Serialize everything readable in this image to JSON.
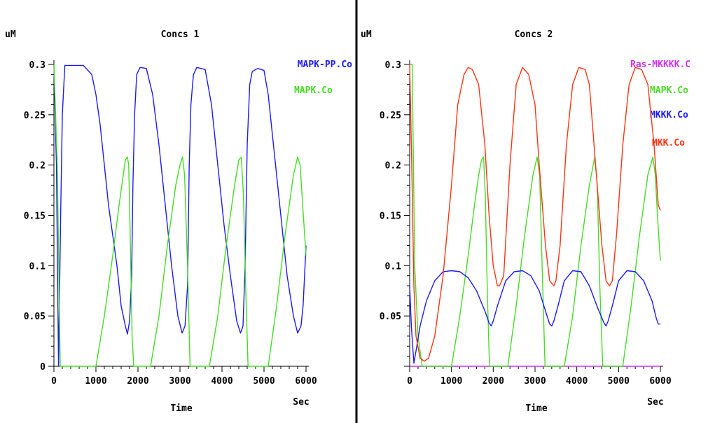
{
  "chart_data": [
    {
      "type": "line",
      "title": "Concs 1",
      "ylabel": "uM",
      "xlabel": "Time",
      "xunit": "Sec",
      "xlim": [
        0,
        6000
      ],
      "ylim": [
        0,
        0.3
      ],
      "xticks": [
        "0",
        "1000",
        "2000",
        "3000",
        "4000",
        "5000",
        "6000"
      ],
      "yticks": [
        "0",
        "0.05",
        "0.1",
        "0.15",
        "0.2",
        "0.25",
        "0.3"
      ],
      "legend_placement": "top-right",
      "series": [
        {
          "name": "MAPK-PP.Co",
          "color": "#1a1aff",
          "points": [
            [
              0,
              0.3
            ],
            [
              60,
              0.2
            ],
            [
              110,
              0
            ],
            [
              160,
              0.15
            ],
            [
              200,
              0.25
            ],
            [
              260,
              0.299
            ],
            [
              700,
              0.299
            ],
            [
              900,
              0.29
            ],
            [
              1000,
              0.27
            ],
            [
              1100,
              0.24
            ],
            [
              1200,
              0.2
            ],
            [
              1300,
              0.16
            ],
            [
              1400,
              0.13
            ],
            [
              1500,
              0.1
            ],
            [
              1600,
              0.06
            ],
            [
              1700,
              0.04
            ],
            [
              1750,
              0.032
            ],
            [
              1800,
              0.045
            ],
            [
              1850,
              0.09
            ],
            [
              1880,
              0.18
            ],
            [
              1920,
              0.25
            ],
            [
              1970,
              0.29
            ],
            [
              2050,
              0.297
            ],
            [
              2200,
              0.296
            ],
            [
              2350,
              0.27
            ],
            [
              2500,
              0.22
            ],
            [
              2650,
              0.16
            ],
            [
              2800,
              0.1
            ],
            [
              2950,
              0.05
            ],
            [
              3050,
              0.033
            ],
            [
              3120,
              0.04
            ],
            [
              3180,
              0.08
            ],
            [
              3220,
              0.2
            ],
            [
              3260,
              0.26
            ],
            [
              3320,
              0.29
            ],
            [
              3400,
              0.297
            ],
            [
              3600,
              0.295
            ],
            [
              3750,
              0.26
            ],
            [
              3900,
              0.2
            ],
            [
              4050,
              0.14
            ],
            [
              4200,
              0.09
            ],
            [
              4350,
              0.045
            ],
            [
              4440,
              0.033
            ],
            [
              4500,
              0.04
            ],
            [
              4550,
              0.1
            ],
            [
              4600,
              0.22
            ],
            [
              4660,
              0.28
            ],
            [
              4720,
              0.293
            ],
            [
              4850,
              0.296
            ],
            [
              5000,
              0.294
            ],
            [
              5100,
              0.27
            ],
            [
              5250,
              0.21
            ],
            [
              5400,
              0.15
            ],
            [
              5550,
              0.09
            ],
            [
              5700,
              0.05
            ],
            [
              5800,
              0.033
            ],
            [
              5880,
              0.04
            ],
            [
              5930,
              0.06
            ],
            [
              6000,
              0.12
            ]
          ]
        },
        {
          "name": "MAPK.Co",
          "color": "#44dd22",
          "points": [
            [
              0,
              0.3
            ],
            [
              80,
              0.2
            ],
            [
              150,
              0
            ],
            [
              1000,
              0
            ],
            [
              1200,
              0.05
            ],
            [
              1400,
              0.11
            ],
            [
              1550,
              0.16
            ],
            [
              1650,
              0.19
            ],
            [
              1700,
              0.205
            ],
            [
              1750,
              0.208
            ],
            [
              1780,
              0.2
            ],
            [
              1820,
              0.12
            ],
            [
              1860,
              0.03
            ],
            [
              1900,
              0
            ],
            [
              2300,
              0
            ],
            [
              2500,
              0.05
            ],
            [
              2700,
              0.12
            ],
            [
              2900,
              0.18
            ],
            [
              3000,
              0.2
            ],
            [
              3060,
              0.208
            ],
            [
              3110,
              0.19
            ],
            [
              3180,
              0.1
            ],
            [
              3240,
              0
            ],
            [
              3700,
              0
            ],
            [
              3900,
              0.05
            ],
            [
              4100,
              0.12
            ],
            [
              4300,
              0.18
            ],
            [
              4400,
              0.205
            ],
            [
              4460,
              0.208
            ],
            [
              4510,
              0.17
            ],
            [
              4570,
              0.07
            ],
            [
              4620,
              0
            ],
            [
              5100,
              0
            ],
            [
              5300,
              0.06
            ],
            [
              5500,
              0.13
            ],
            [
              5700,
              0.19
            ],
            [
              5800,
              0.208
            ],
            [
              5860,
              0.2
            ],
            [
              5920,
              0.16
            ],
            [
              6000,
              0.11
            ]
          ]
        }
      ]
    },
    {
      "type": "line",
      "title": "Concs 2",
      "ylabel": "uM",
      "xlabel": "Time",
      "xunit": "Sec",
      "xlim": [
        0,
        6000
      ],
      "ylim": [
        0,
        0.3
      ],
      "xticks": [
        "0",
        "1000",
        "2000",
        "3000",
        "4000",
        "5000",
        "6000"
      ],
      "yticks": [
        "0.05",
        "0.1",
        "0.15",
        "0.2",
        "0.25",
        "0.3"
      ],
      "legend_placement": "top-right",
      "series": [
        {
          "name": "Ras-MKKKK.C",
          "color": "#cc33ee",
          "points": [
            [
              0,
              0
            ],
            [
              6000,
              0
            ]
          ]
        },
        {
          "name": "MAPK.Co",
          "color": "#44dd22",
          "points": [
            [
              0,
              0.3
            ],
            [
              60,
              0.3
            ],
            [
              120,
              0.1
            ],
            [
              200,
              0.03
            ],
            [
              300,
              0
            ],
            [
              1000,
              0
            ],
            [
              1200,
              0.05
            ],
            [
              1400,
              0.11
            ],
            [
              1550,
              0.16
            ],
            [
              1650,
              0.19
            ],
            [
              1720,
              0.205
            ],
            [
              1770,
              0.208
            ],
            [
              1810,
              0.17
            ],
            [
              1860,
              0.07
            ],
            [
              1910,
              0
            ],
            [
              2350,
              0
            ],
            [
              2550,
              0.06
            ],
            [
              2750,
              0.13
            ],
            [
              2950,
              0.19
            ],
            [
              3050,
              0.208
            ],
            [
              3110,
              0.19
            ],
            [
              3170,
              0.1
            ],
            [
              3240,
              0
            ],
            [
              3700,
              0
            ],
            [
              3900,
              0.05
            ],
            [
              4100,
              0.12
            ],
            [
              4300,
              0.18
            ],
            [
              4430,
              0.208
            ],
            [
              4490,
              0.18
            ],
            [
              4550,
              0.08
            ],
            [
              4620,
              0
            ],
            [
              5100,
              0
            ],
            [
              5300,
              0.06
            ],
            [
              5500,
              0.13
            ],
            [
              5700,
              0.19
            ],
            [
              5820,
              0.208
            ],
            [
              5880,
              0.19
            ],
            [
              5930,
              0.15
            ],
            [
              6000,
              0.105
            ]
          ]
        },
        {
          "name": "MKKK.Co",
          "color": "#1a1aff",
          "points": [
            [
              0,
              0.08
            ],
            [
              40,
              0.04
            ],
            [
              100,
              0.003
            ],
            [
              150,
              0.015
            ],
            [
              250,
              0.04
            ],
            [
              400,
              0.065
            ],
            [
              600,
              0.085
            ],
            [
              800,
              0.094
            ],
            [
              1000,
              0.095
            ],
            [
              1200,
              0.094
            ],
            [
              1400,
              0.088
            ],
            [
              1600,
              0.075
            ],
            [
              1800,
              0.055
            ],
            [
              1900,
              0.043
            ],
            [
              1950,
              0.04
            ],
            [
              2000,
              0.045
            ],
            [
              2100,
              0.06
            ],
            [
              2300,
              0.085
            ],
            [
              2500,
              0.094
            ],
            [
              2700,
              0.095
            ],
            [
              2900,
              0.09
            ],
            [
              3100,
              0.075
            ],
            [
              3250,
              0.055
            ],
            [
              3350,
              0.042
            ],
            [
              3400,
              0.04
            ],
            [
              3450,
              0.045
            ],
            [
              3550,
              0.06
            ],
            [
              3700,
              0.085
            ],
            [
              3900,
              0.095
            ],
            [
              4100,
              0.094
            ],
            [
              4300,
              0.08
            ],
            [
              4500,
              0.058
            ],
            [
              4650,
              0.043
            ],
            [
              4700,
              0.04
            ],
            [
              4750,
              0.045
            ],
            [
              4850,
              0.06
            ],
            [
              5000,
              0.085
            ],
            [
              5200,
              0.095
            ],
            [
              5400,
              0.094
            ],
            [
              5600,
              0.085
            ],
            [
              5800,
              0.065
            ],
            [
              5900,
              0.048
            ],
            [
              5950,
              0.042
            ],
            [
              6000,
              0.042
            ]
          ]
        },
        {
          "name": "MKK.Co",
          "color": "#ff3311",
          "points": [
            [
              0,
              0.3
            ],
            [
              50,
              0.2
            ],
            [
              100,
              0.08
            ],
            [
              150,
              0.03
            ],
            [
              250,
              0.008
            ],
            [
              350,
              0.005
            ],
            [
              450,
              0.008
            ],
            [
              600,
              0.03
            ],
            [
              800,
              0.09
            ],
            [
              1000,
              0.18
            ],
            [
              1150,
              0.26
            ],
            [
              1300,
              0.29
            ],
            [
              1400,
              0.297
            ],
            [
              1500,
              0.295
            ],
            [
              1650,
              0.28
            ],
            [
              1800,
              0.22
            ],
            [
              1900,
              0.15
            ],
            [
              2000,
              0.1
            ],
            [
              2100,
              0.08
            ],
            [
              2150,
              0.08
            ],
            [
              2250,
              0.09
            ],
            [
              2400,
              0.2
            ],
            [
              2550,
              0.28
            ],
            [
              2700,
              0.297
            ],
            [
              2850,
              0.29
            ],
            [
              3000,
              0.26
            ],
            [
              3100,
              0.2
            ],
            [
              3250,
              0.12
            ],
            [
              3350,
              0.085
            ],
            [
              3450,
              0.08
            ],
            [
              3500,
              0.085
            ],
            [
              3600,
              0.12
            ],
            [
              3750,
              0.22
            ],
            [
              3900,
              0.28
            ],
            [
              4050,
              0.297
            ],
            [
              4200,
              0.295
            ],
            [
              4300,
              0.28
            ],
            [
              4450,
              0.2
            ],
            [
              4600,
              0.12
            ],
            [
              4700,
              0.085
            ],
            [
              4780,
              0.08
            ],
            [
              4850,
              0.085
            ],
            [
              4950,
              0.13
            ],
            [
              5100,
              0.22
            ],
            [
              5250,
              0.28
            ],
            [
              5400,
              0.297
            ],
            [
              5550,
              0.295
            ],
            [
              5700,
              0.28
            ],
            [
              5850,
              0.22
            ],
            [
              5950,
              0.16
            ],
            [
              6000,
              0.155
            ]
          ]
        }
      ]
    }
  ]
}
